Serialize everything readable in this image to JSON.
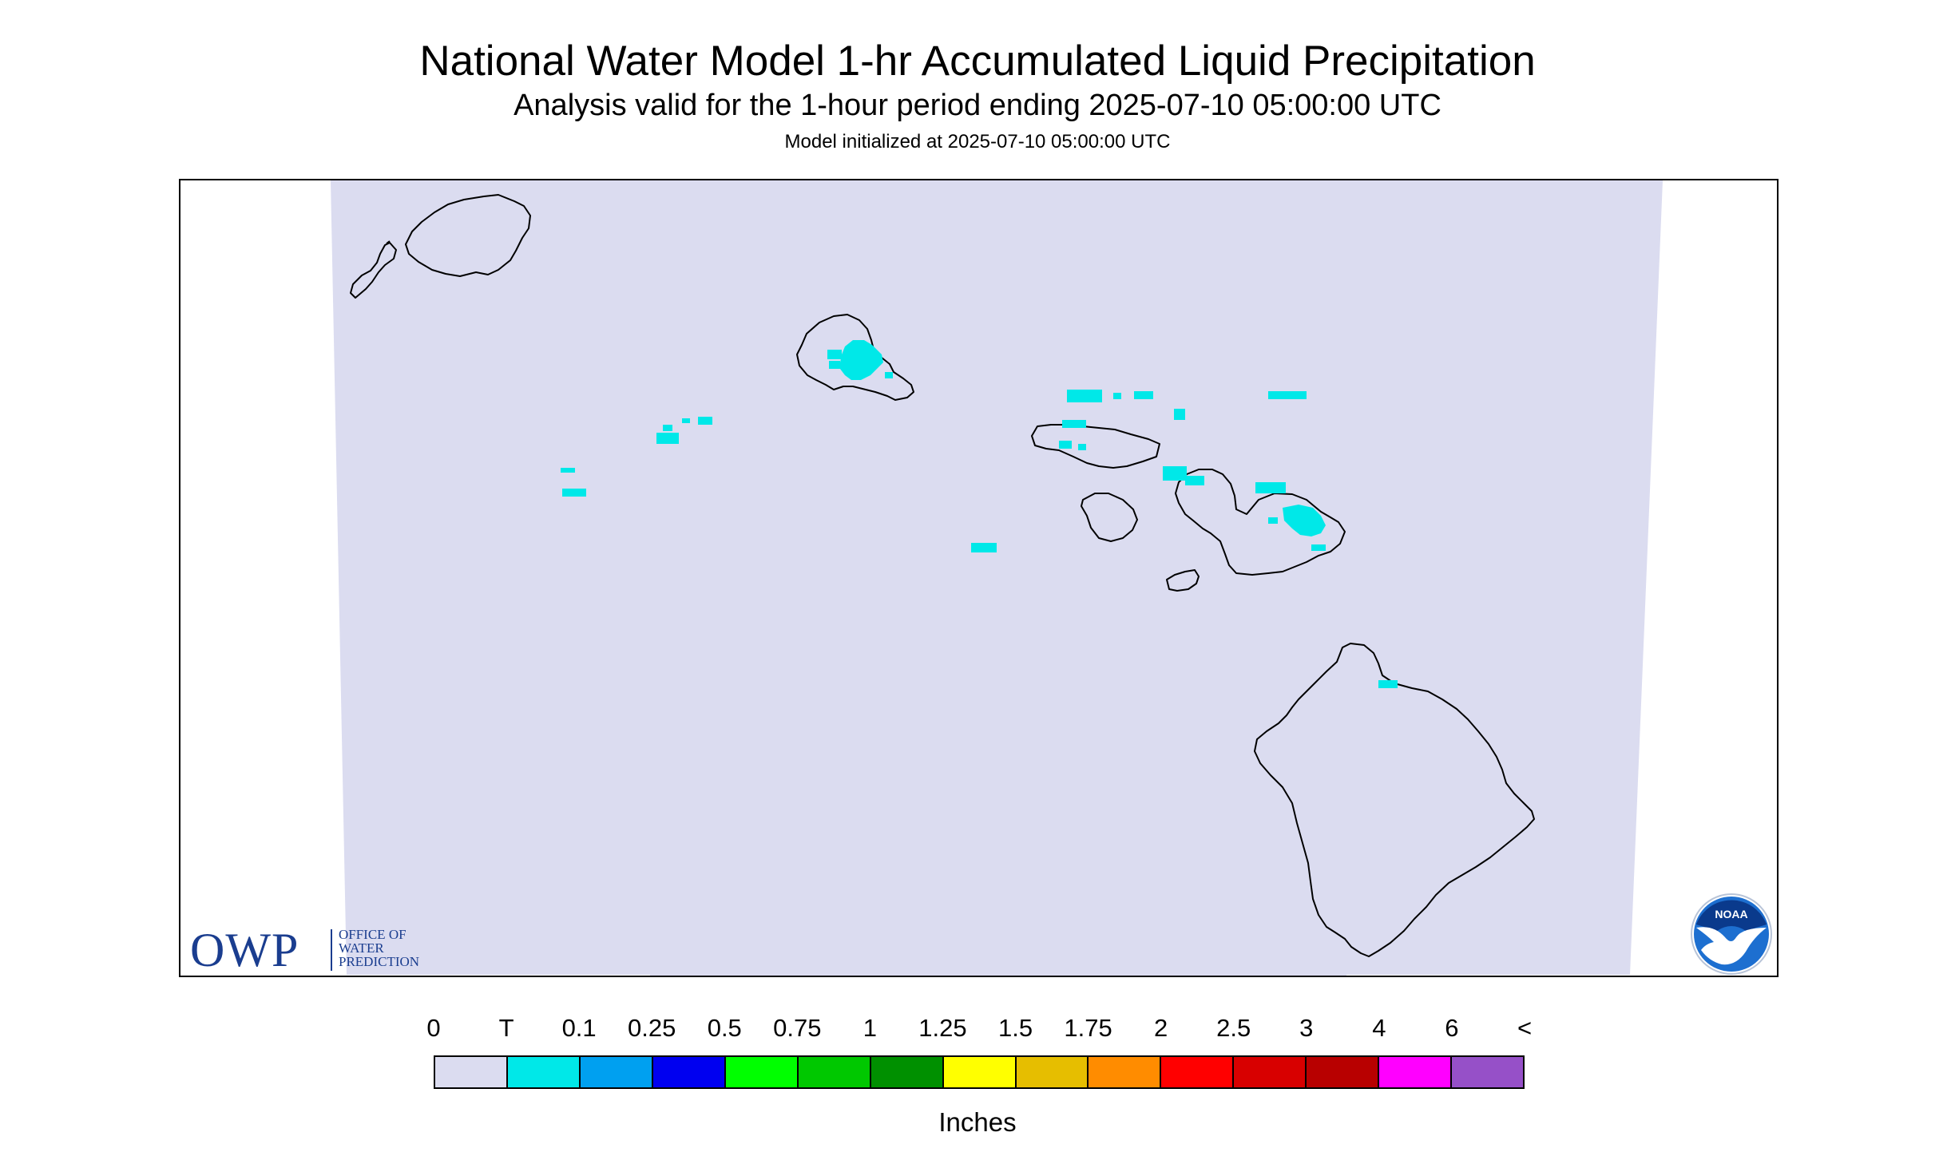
{
  "header": {
    "title": "National Water Model 1-hr Accumulated Liquid Precipitation",
    "subtitle": "Analysis valid for the 1-hour period ending 2025-07-10 05:00:00 UTC",
    "init_line": "Model initialized at 2025-07-10 05:00:00 UTC"
  },
  "map": {
    "region": "Hawaiian Islands",
    "domain_fill_color": "#dbdcf0",
    "coastline_color": "#000000",
    "precip_color": "#00e8e8",
    "precip_category": "T"
  },
  "logos": {
    "owp": {
      "letters": "OWP",
      "line1": "OFFICE OF",
      "line2": "WATER",
      "line3": "PREDICTION",
      "color": "#1a3d8f"
    },
    "noaa": {
      "text": "NOAA",
      "colors": {
        "sky": "#1d6fd0",
        "deep": "#0a3a8c",
        "bird": "#ffffff"
      }
    }
  },
  "legend": {
    "labels": [
      "0",
      "T",
      "0.1",
      "0.25",
      "0.5",
      "0.75",
      "1",
      "1.25",
      "1.5",
      "1.75",
      "2",
      "2.5",
      "3",
      "4",
      "6",
      "<"
    ],
    "colors": [
      "#dbdcf0",
      "#00e8e8",
      "#00a0f0",
      "#0000f0",
      "#00ff00",
      "#00c800",
      "#009000",
      "#ffff00",
      "#e6be00",
      "#ff8c00",
      "#ff0000",
      "#d80000",
      "#b80000",
      "#ff00ff",
      "#9650c8"
    ],
    "units": "Inches"
  }
}
